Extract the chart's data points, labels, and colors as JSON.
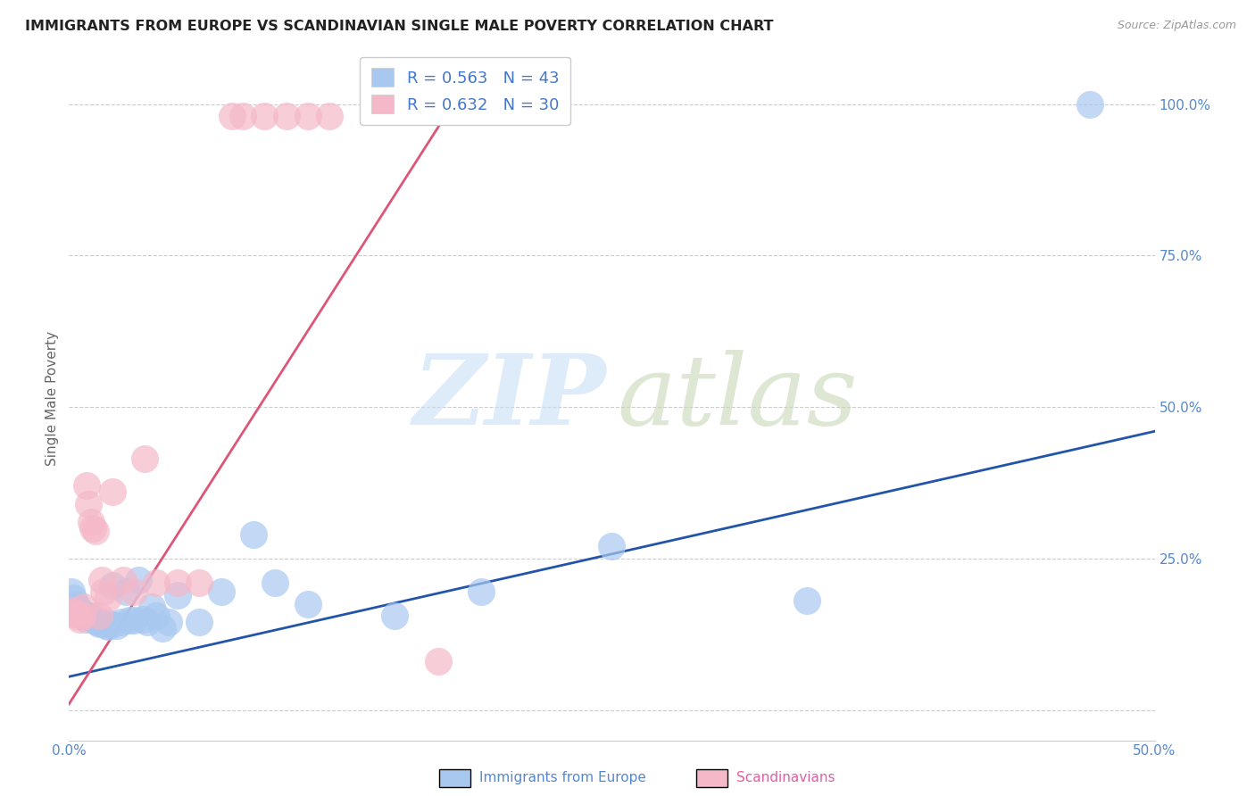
{
  "title": "IMMIGRANTS FROM EUROPE VS SCANDINAVIAN SINGLE MALE POVERTY CORRELATION CHART",
  "source": "Source: ZipAtlas.com",
  "ylabel": "Single Male Poverty",
  "xlim": [
    0.0,
    0.5
  ],
  "ylim": [
    -0.05,
    1.08
  ],
  "r_blue": 0.563,
  "n_blue": 43,
  "r_pink": 0.632,
  "n_pink": 30,
  "blue_color": "#a8c8f0",
  "pink_color": "#f5b8c8",
  "blue_line_color": "#2255aa",
  "pink_line_color": "#dd5577",
  "blue_scatter_x": [
    0.001,
    0.002,
    0.003,
    0.004,
    0.005,
    0.006,
    0.007,
    0.008,
    0.009,
    0.01,
    0.011,
    0.012,
    0.013,
    0.014,
    0.015,
    0.016,
    0.017,
    0.018,
    0.019,
    0.02,
    0.022,
    0.024,
    0.026,
    0.028,
    0.03,
    0.032,
    0.034,
    0.036,
    0.038,
    0.04,
    0.043,
    0.046,
    0.05,
    0.06,
    0.07,
    0.085,
    0.095,
    0.11,
    0.15,
    0.19,
    0.25,
    0.34,
    0.47
  ],
  "blue_scatter_y": [
    0.195,
    0.185,
    0.175,
    0.17,
    0.165,
    0.16,
    0.155,
    0.15,
    0.155,
    0.155,
    0.15,
    0.148,
    0.145,
    0.142,
    0.145,
    0.143,
    0.14,
    0.138,
    0.142,
    0.205,
    0.14,
    0.145,
    0.195,
    0.148,
    0.148,
    0.215,
    0.15,
    0.145,
    0.17,
    0.155,
    0.135,
    0.145,
    0.19,
    0.145,
    0.195,
    0.29,
    0.21,
    0.175,
    0.155,
    0.195,
    0.27,
    0.18,
    1.0
  ],
  "pink_scatter_x": [
    0.001,
    0.002,
    0.003,
    0.004,
    0.005,
    0.006,
    0.007,
    0.008,
    0.009,
    0.01,
    0.011,
    0.012,
    0.014,
    0.015,
    0.016,
    0.018,
    0.02,
    0.025,
    0.03,
    0.035,
    0.04,
    0.05,
    0.06,
    0.075,
    0.08,
    0.09,
    0.1,
    0.11,
    0.12,
    0.17
  ],
  "pink_scatter_y": [
    0.165,
    0.162,
    0.158,
    0.155,
    0.15,
    0.155,
    0.17,
    0.37,
    0.34,
    0.31,
    0.3,
    0.295,
    0.155,
    0.215,
    0.195,
    0.185,
    0.36,
    0.215,
    0.195,
    0.415,
    0.21,
    0.21,
    0.21,
    0.98,
    0.98,
    0.98,
    0.98,
    0.98,
    0.98,
    0.08
  ],
  "blue_line_x": [
    0.0,
    0.5
  ],
  "blue_line_y": [
    0.055,
    0.46
  ],
  "pink_line_x": [
    0.0,
    0.175
  ],
  "pink_line_y": [
    0.01,
    0.99
  ]
}
